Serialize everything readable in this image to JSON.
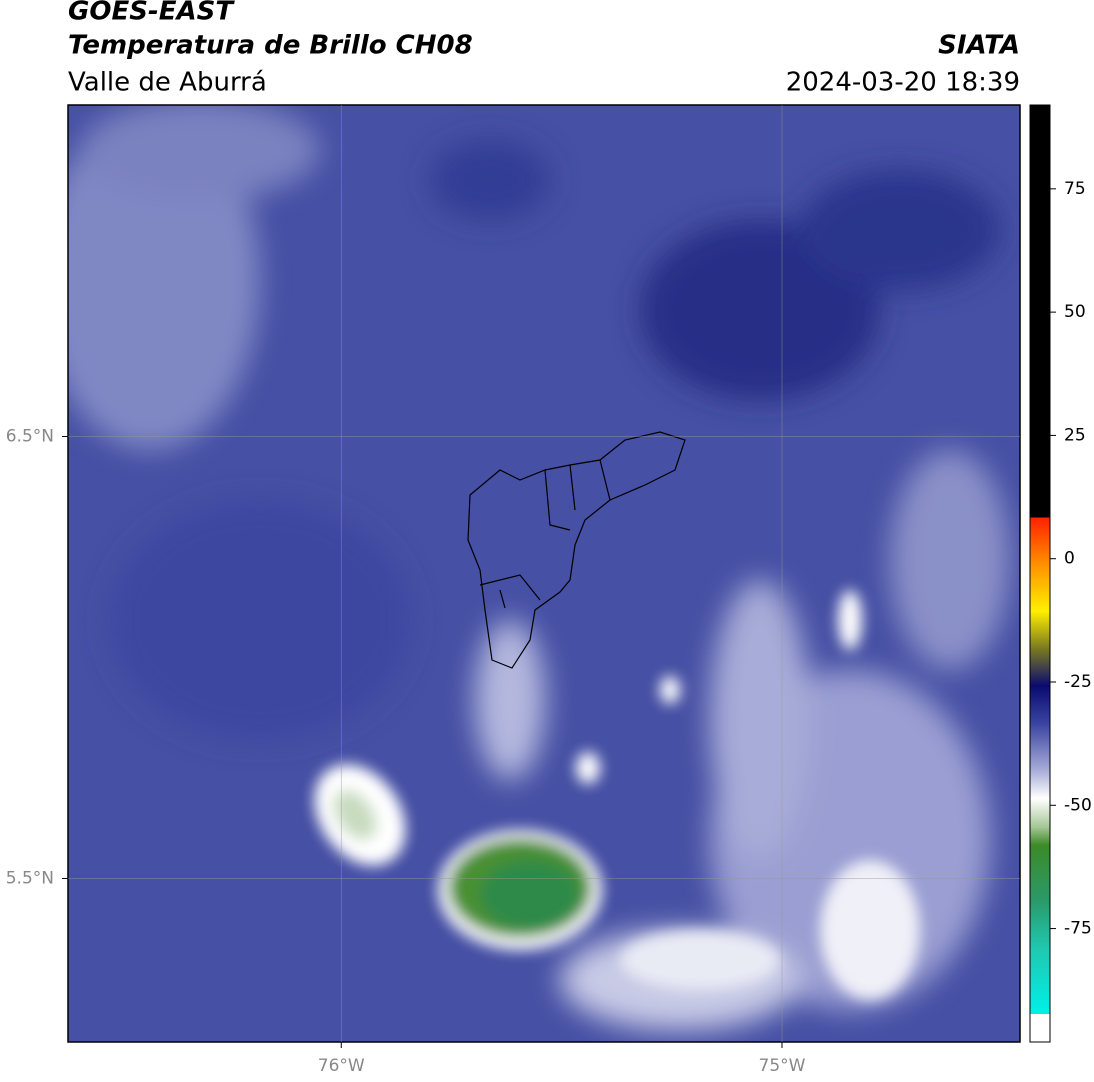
{
  "header": {
    "title": "GOES-EAST",
    "subtitle": "Temperatura de Brillo CH08",
    "region": "Valle de Aburrá",
    "agency": "SIATA",
    "datetime": "2024-03-20 18:39"
  },
  "chart_data": {
    "type": "map",
    "xlim": [
      -76.62,
      -74.46
    ],
    "ylim": [
      5.13,
      7.25
    ],
    "xticks": [
      {
        "value": -76,
        "label": "76°W"
      },
      {
        "value": -75,
        "label": "75°W"
      }
    ],
    "yticks": [
      {
        "value": 5.5,
        "label": "5.5°N"
      },
      {
        "value": 6.5,
        "label": "6.5°N"
      }
    ],
    "grid": true,
    "colorbar": {
      "lim": [
        -98,
        92
      ],
      "ticks": [
        -75,
        -50,
        -25,
        0,
        25,
        50,
        75
      ]
    }
  }
}
